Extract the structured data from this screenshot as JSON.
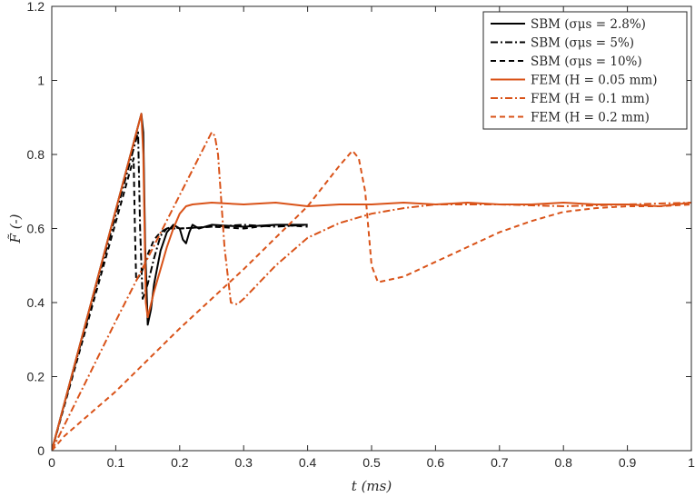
{
  "chart_data": {
    "type": "line",
    "xlabel": "t (ms)",
    "ylabel": "F̃ (-)",
    "xlim": [
      0,
      1
    ],
    "ylim": [
      0,
      1.2
    ],
    "x_ticks": [
      "0",
      "0.1",
      "0.2",
      "0.3",
      "0.4",
      "0.5",
      "0.6",
      "0.7",
      "0.8",
      "0.9",
      "1"
    ],
    "y_ticks": [
      "0",
      "0.2",
      "0.4",
      "0.6",
      "0.8",
      "1",
      "1.2"
    ],
    "grid": false,
    "legend_position": "top-right",
    "series": [
      {
        "name": "SBM (σμs = 2.8%)",
        "color": "#000000",
        "style": "solid",
        "x": [
          0,
          0.14,
          0.143,
          0.146,
          0.15,
          0.155,
          0.16,
          0.17,
          0.18,
          0.19,
          0.2,
          0.205,
          0.21,
          0.215,
          0.22,
          0.23,
          0.25,
          0.3,
          0.35,
          0.4
        ],
        "y": [
          0,
          0.91,
          0.86,
          0.55,
          0.34,
          0.38,
          0.45,
          0.54,
          0.59,
          0.61,
          0.6,
          0.57,
          0.56,
          0.59,
          0.61,
          0.6,
          0.61,
          0.605,
          0.61,
          0.61
        ]
      },
      {
        "name": "SBM (σμs = 5%)",
        "color": "#000000",
        "style": "dashdot",
        "x": [
          0,
          0.135,
          0.138,
          0.142,
          0.15,
          0.16,
          0.17,
          0.18,
          0.19,
          0.2,
          0.25,
          0.3,
          0.35,
          0.4
        ],
        "y": [
          0,
          0.86,
          0.6,
          0.41,
          0.45,
          0.52,
          0.58,
          0.6,
          0.605,
          0.6,
          0.605,
          0.61,
          0.605,
          0.61
        ]
      },
      {
        "name": "SBM (σμs = 10%)",
        "color": "#000000",
        "style": "dashed",
        "x": [
          0,
          0.128,
          0.13,
          0.132,
          0.14,
          0.15,
          0.16,
          0.17,
          0.18,
          0.2,
          0.25,
          0.3,
          0.35,
          0.4
        ],
        "y": [
          0,
          0.79,
          0.6,
          0.46,
          0.48,
          0.53,
          0.57,
          0.59,
          0.6,
          0.6,
          0.605,
          0.6,
          0.61,
          0.605
        ]
      },
      {
        "name": "FEM (H = 0.05 mm)",
        "color": "#D95319",
        "style": "solid",
        "x": [
          0,
          0.14,
          0.143,
          0.147,
          0.15,
          0.16,
          0.17,
          0.18,
          0.19,
          0.2,
          0.21,
          0.22,
          0.25,
          0.3,
          0.35,
          0.4,
          0.45,
          0.5,
          0.55,
          0.6,
          0.65,
          0.7,
          0.75,
          0.8,
          0.85,
          0.9,
          0.95,
          1.0
        ],
        "y": [
          0,
          0.91,
          0.8,
          0.4,
          0.36,
          0.43,
          0.49,
          0.55,
          0.6,
          0.64,
          0.66,
          0.665,
          0.67,
          0.665,
          0.67,
          0.66,
          0.665,
          0.665,
          0.67,
          0.665,
          0.67,
          0.665,
          0.665,
          0.67,
          0.665,
          0.665,
          0.66,
          0.67
        ]
      },
      {
        "name": "FEM (H = 0.1 mm)",
        "color": "#D95319",
        "style": "dashdot",
        "x": [
          0,
          0.1,
          0.2,
          0.25,
          0.255,
          0.26,
          0.27,
          0.28,
          0.29,
          0.3,
          0.35,
          0.4,
          0.45,
          0.5,
          0.55,
          0.6,
          0.7,
          0.8,
          0.9,
          1.0
        ],
        "y": [
          0,
          0.35,
          0.69,
          0.86,
          0.85,
          0.8,
          0.55,
          0.4,
          0.395,
          0.41,
          0.5,
          0.575,
          0.615,
          0.64,
          0.655,
          0.665,
          0.665,
          0.66,
          0.665,
          0.67
        ]
      },
      {
        "name": "FEM (H = 0.2 mm)",
        "color": "#D95319",
        "style": "dashed",
        "x": [
          0,
          0.02,
          0.1,
          0.2,
          0.3,
          0.4,
          0.45,
          0.47,
          0.48,
          0.49,
          0.5,
          0.51,
          0.55,
          0.6,
          0.65,
          0.7,
          0.75,
          0.8,
          0.85,
          0.9,
          0.95,
          1.0
        ],
        "y": [
          0,
          0.04,
          0.16,
          0.33,
          0.49,
          0.66,
          0.77,
          0.81,
          0.79,
          0.7,
          0.5,
          0.455,
          0.47,
          0.51,
          0.55,
          0.59,
          0.62,
          0.645,
          0.655,
          0.66,
          0.66,
          0.665
        ]
      }
    ]
  }
}
